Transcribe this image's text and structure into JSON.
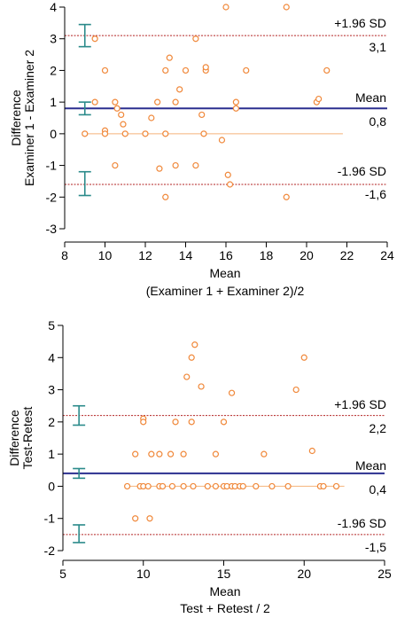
{
  "chart_data": [
    {
      "type": "scatter",
      "xlabel": "Mean",
      "xlabel2": "(Examiner 1 + Examiner 2)/2",
      "ylabel": "Difference",
      "ylabel2": "Examiner 1 - Examiner 2",
      "xlim": [
        8,
        24
      ],
      "ylim": [
        -3,
        4
      ],
      "xticks": [
        8,
        10,
        12,
        14,
        16,
        18,
        20,
        22,
        24
      ],
      "yticks": [
        -3,
        -2,
        -1,
        0,
        1,
        2,
        3,
        4
      ],
      "grid": false,
      "mean": 0.8,
      "mean_label": "Mean",
      "mean_value_label": "0,8",
      "upper_loa": 3.1,
      "upper_label": "+1.96 SD",
      "upper_value_label": "3,1",
      "lower_loa": -1.6,
      "lower_label": "-1.96 SD",
      "lower_value_label": "-1,6",
      "ci_x": 9,
      "ci": [
        {
          "center": 3.1,
          "low": 2.75,
          "high": 3.45
        },
        {
          "center": 0.8,
          "low": 0.6,
          "high": 1.0
        },
        {
          "center": -1.6,
          "low": -1.95,
          "high": -1.2
        }
      ],
      "zero_line_x": [
        9,
        21.8
      ],
      "colors": {
        "points": "#f0883a",
        "mean": "#2b2f8f",
        "loa": "#b22222",
        "ci": "#2a8a8a",
        "zero": "#f5b27a"
      },
      "points": [
        {
          "x": 9.0,
          "y": 0.0
        },
        {
          "x": 9.5,
          "y": 3.0
        },
        {
          "x": 9.5,
          "y": 1.0
        },
        {
          "x": 10.0,
          "y": 2.0
        },
        {
          "x": 10.0,
          "y": 0.1
        },
        {
          "x": 10.0,
          "y": 0.0
        },
        {
          "x": 10.5,
          "y": 1.0
        },
        {
          "x": 10.6,
          "y": 0.8
        },
        {
          "x": 10.8,
          "y": 0.6
        },
        {
          "x": 10.9,
          "y": 0.3
        },
        {
          "x": 11.0,
          "y": 0.0
        },
        {
          "x": 10.5,
          "y": -1.0
        },
        {
          "x": 12.0,
          "y": 0.0
        },
        {
          "x": 12.3,
          "y": 0.5
        },
        {
          "x": 12.6,
          "y": 1.0
        },
        {
          "x": 12.7,
          "y": -1.1
        },
        {
          "x": 13.0,
          "y": 2.0
        },
        {
          "x": 13.0,
          "y": 0.0
        },
        {
          "x": 13.0,
          "y": -2.0
        },
        {
          "x": 13.2,
          "y": 2.4
        },
        {
          "x": 13.5,
          "y": 1.0
        },
        {
          "x": 13.7,
          "y": 1.4
        },
        {
          "x": 13.5,
          "y": -1.0
        },
        {
          "x": 14.0,
          "y": 2.0
        },
        {
          "x": 14.5,
          "y": 3.0
        },
        {
          "x": 14.5,
          "y": -1.0
        },
        {
          "x": 14.8,
          "y": 0.6
        },
        {
          "x": 14.9,
          "y": 0.0
        },
        {
          "x": 15.0,
          "y": 2.0
        },
        {
          "x": 15.0,
          "y": 2.1
        },
        {
          "x": 15.8,
          "y": -0.2
        },
        {
          "x": 16.0,
          "y": 4.0
        },
        {
          "x": 16.1,
          "y": -1.3
        },
        {
          "x": 16.2,
          "y": -1.6
        },
        {
          "x": 16.5,
          "y": 1.0
        },
        {
          "x": 16.5,
          "y": 0.8
        },
        {
          "x": 17.0,
          "y": 2.0
        },
        {
          "x": 19.0,
          "y": 4.0
        },
        {
          "x": 19.0,
          "y": -2.0
        },
        {
          "x": 20.5,
          "y": 1.0
        },
        {
          "x": 20.6,
          "y": 1.1
        },
        {
          "x": 21.0,
          "y": 2.0
        }
      ]
    },
    {
      "type": "scatter",
      "xlabel": "Mean",
      "xlabel2": "Test + Retest / 2",
      "ylabel": "Difference",
      "ylabel2": "Test-Retest",
      "xlim": [
        5,
        25
      ],
      "ylim": [
        -2,
        5
      ],
      "xticks": [
        5,
        10,
        15,
        20,
        25
      ],
      "yticks": [
        -2,
        -1,
        0,
        1,
        2,
        3,
        4,
        5
      ],
      "grid": false,
      "mean": 0.4,
      "mean_label": "Mean",
      "mean_value_label": "0,4",
      "upper_loa": 2.2,
      "upper_label": "+1.96 SD",
      "upper_value_label": "2,2",
      "lower_loa": -1.5,
      "lower_label": "-1.96 SD",
      "lower_value_label": "-1,5",
      "ci_x": 6,
      "ci": [
        {
          "center": 2.2,
          "low": 1.9,
          "high": 2.5
        },
        {
          "center": 0.4,
          "low": 0.25,
          "high": 0.55
        },
        {
          "center": -1.5,
          "low": -1.75,
          "high": -1.2
        }
      ],
      "zero_line_x": [
        9,
        22.5
      ],
      "colors": {
        "points": "#f0883a",
        "mean": "#2b2f8f",
        "loa": "#b22222",
        "ci": "#2a8a8a",
        "zero": "#f5b27a"
      },
      "points": [
        {
          "x": 9.0,
          "y": 0.0
        },
        {
          "x": 9.5,
          "y": 1.0
        },
        {
          "x": 9.5,
          "y": -1.0
        },
        {
          "x": 9.8,
          "y": 0.0
        },
        {
          "x": 10.0,
          "y": 2.1
        },
        {
          "x": 10.0,
          "y": 2.0
        },
        {
          "x": 10.0,
          "y": 0.0
        },
        {
          "x": 10.3,
          "y": 0.0
        },
        {
          "x": 10.4,
          "y": -1.0
        },
        {
          "x": 10.5,
          "y": 1.0
        },
        {
          "x": 11.0,
          "y": 1.0
        },
        {
          "x": 11.0,
          "y": 0.0
        },
        {
          "x": 11.2,
          "y": 0.0
        },
        {
          "x": 11.7,
          "y": 1.0
        },
        {
          "x": 11.8,
          "y": 0.0
        },
        {
          "x": 12.0,
          "y": 2.0
        },
        {
          "x": 12.5,
          "y": 1.0
        },
        {
          "x": 12.5,
          "y": 0.0
        },
        {
          "x": 12.7,
          "y": 3.4
        },
        {
          "x": 13.0,
          "y": 4.0
        },
        {
          "x": 13.0,
          "y": 2.0
        },
        {
          "x": 13.1,
          "y": 0.0
        },
        {
          "x": 13.2,
          "y": 4.4
        },
        {
          "x": 13.6,
          "y": 3.1
        },
        {
          "x": 14.0,
          "y": 0.0
        },
        {
          "x": 14.5,
          "y": 1.0
        },
        {
          "x": 14.5,
          "y": 0.0
        },
        {
          "x": 15.0,
          "y": 2.0
        },
        {
          "x": 15.0,
          "y": 0.0
        },
        {
          "x": 15.2,
          "y": 0.0
        },
        {
          "x": 15.5,
          "y": 2.9
        },
        {
          "x": 15.5,
          "y": 0.0
        },
        {
          "x": 15.7,
          "y": 0.0
        },
        {
          "x": 16.0,
          "y": 0.0
        },
        {
          "x": 16.2,
          "y": 0.0
        },
        {
          "x": 17.0,
          "y": 0.0
        },
        {
          "x": 17.5,
          "y": 1.0
        },
        {
          "x": 18.0,
          "y": 0.0
        },
        {
          "x": 19.0,
          "y": 0.0
        },
        {
          "x": 19.5,
          "y": 3.0
        },
        {
          "x": 20.0,
          "y": 4.0
        },
        {
          "x": 20.5,
          "y": 1.1
        },
        {
          "x": 21.0,
          "y": 0.0
        },
        {
          "x": 21.2,
          "y": 0.0
        },
        {
          "x": 22.0,
          "y": 0.0
        }
      ]
    }
  ]
}
